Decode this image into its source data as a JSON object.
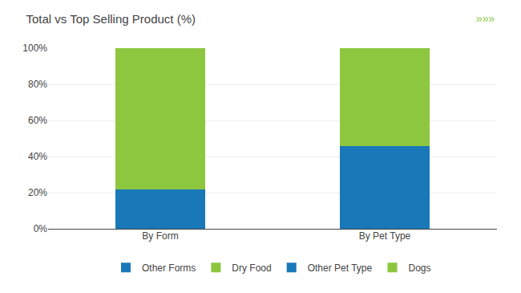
{
  "chart_data": {
    "type": "bar",
    "title": "Total vs Top Selling Product (%)",
    "categories": [
      "By Form",
      "By Pet Type"
    ],
    "series": [
      {
        "name": "Other Forms",
        "color": "#1878b8",
        "values": [
          22,
          null
        ]
      },
      {
        "name": "Dry Food",
        "color": "#8dc63f",
        "values": [
          78,
          null
        ]
      },
      {
        "name": "Other Pet Type",
        "color": "#1878b8",
        "values": [
          null,
          46
        ]
      },
      {
        "name": "Dogs",
        "color": "#8dc63f",
        "values": [
          null,
          54
        ]
      }
    ],
    "stacked": true,
    "ylim": [
      0,
      100
    ],
    "yticks": [
      {
        "value": 0,
        "label": "0%"
      },
      {
        "value": 20,
        "label": "20%"
      },
      {
        "value": 40,
        "label": "40%"
      },
      {
        "value": 60,
        "label": "60%"
      },
      {
        "value": 80,
        "label": "80%"
      },
      {
        "value": 100,
        "label": "100%"
      }
    ],
    "grid": true,
    "legend": "bottom",
    "annotations": [
      {
        "text": "»»»",
        "color": "#8dc63f"
      }
    ]
  }
}
